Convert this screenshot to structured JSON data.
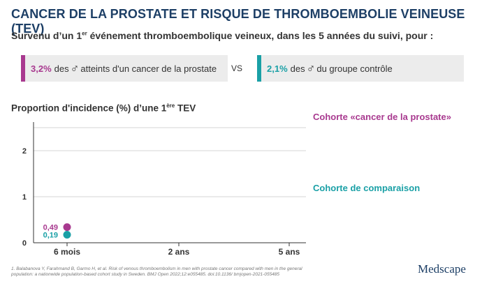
{
  "header": {
    "title": "CANCER DE LA PROSTATE ET RISQUE DE THROMBOEMBOLIE VEINEUSE (TEV)",
    "subtitle_pre": "Survenu d’un 1",
    "subtitle_sup": "er",
    "subtitle_post": " événement thromboembolique veineux, dans les 5 années du suivi, pour :"
  },
  "comparison": {
    "left": {
      "pct": "3,2%",
      "text_pre": "des",
      "text_post": "atteints d'un cancer de la prostate",
      "color": "#a8398f"
    },
    "vs": "VS",
    "right": {
      "pct": "2,1%",
      "text_pre": "des",
      "text_post": "du groupe contrôle",
      "color": "#1aa0a6"
    },
    "male_symbol": "♂"
  },
  "chart_data": {
    "type": "scatter",
    "title_pre": "Proportion d'incidence (%) d’une 1",
    "title_sup": "ère",
    "title_post": " TEV",
    "categories": [
      "6 mois",
      "2 ans",
      "5 ans"
    ],
    "y_ticks": [
      "0",
      "1",
      "2"
    ],
    "ylim": [
      0,
      2.5
    ],
    "grid": true,
    "series": [
      {
        "name": "Cohorte «cancer de la prostate»",
        "color": "#a8398f",
        "values": [
          0.49
        ],
        "labels": [
          "0,49"
        ]
      },
      {
        "name": "Cohorte de comparaison",
        "color": "#1aa0a6",
        "values": [
          0.19
        ],
        "labels": [
          "0,19"
        ]
      }
    ]
  },
  "footnote": "1. Balabanova Y, Farahmand B, Garmo H, et al. Risk of venous thromboembolism in men with prostate cancer compared with men in the general population: a nationwide population-based cohort study in Sweden. BMJ Open 2022;12:e055485. doi:10.1136/ bmjopen-2021-055485",
  "logo": "Medscape"
}
